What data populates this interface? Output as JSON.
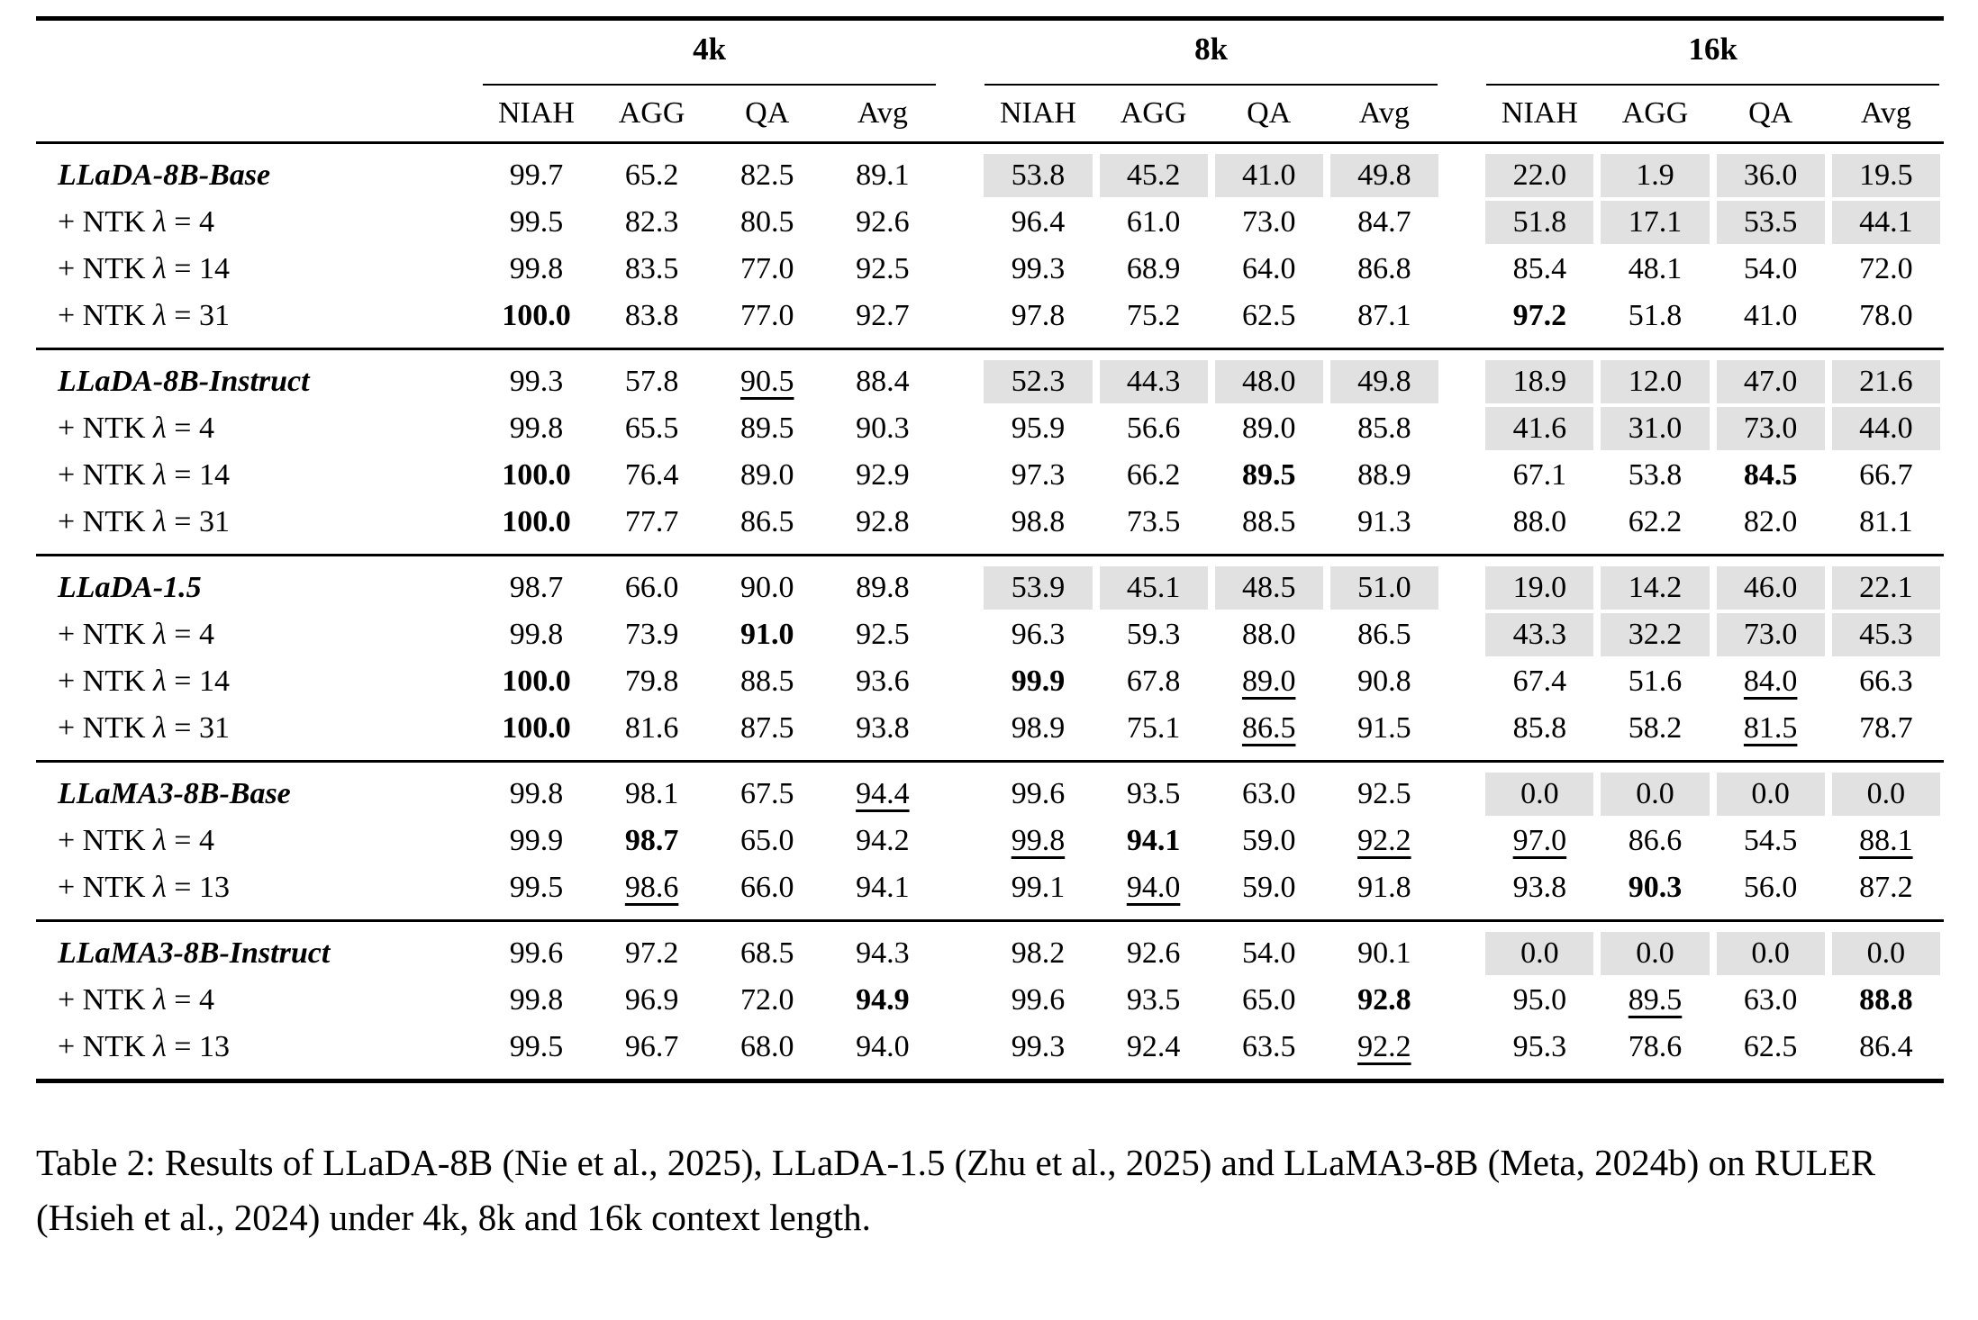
{
  "colors": {
    "row_highlight": "#e1e1e1"
  },
  "format_codes": {
    "b": "bold",
    "u": "underlined",
    "s": "shaded-gray-cell"
  },
  "table": {
    "groups": [
      {
        "label": "4k",
        "columns": [
          "NIAH",
          "AGG",
          "QA",
          "Avg"
        ]
      },
      {
        "label": "8k",
        "columns": [
          "NIAH",
          "AGG",
          "QA",
          "Avg"
        ]
      },
      {
        "label": "16k",
        "columns": [
          "NIAH",
          "AGG",
          "QA",
          "Avg"
        ]
      }
    ],
    "blocks": [
      {
        "rows": [
          {
            "label": "LLaDA-8B-Base",
            "model": true,
            "cells": [
              "99.7",
              "65.2",
              "82.5",
              "89.1",
              "53.8|s",
              "45.2|s",
              "41.0|s",
              "49.8|s",
              "22.0|s",
              "1.9|s",
              "36.0|s",
              "19.5|s"
            ]
          },
          {
            "label": "+ NTK λ = 4",
            "model": false,
            "cells": [
              "99.5",
              "82.3",
              "80.5",
              "92.6",
              "96.4",
              "61.0",
              "73.0",
              "84.7",
              "51.8|s",
              "17.1|s",
              "53.5|s",
              "44.1|s"
            ]
          },
          {
            "label": "+ NTK λ = 14",
            "model": false,
            "cells": [
              "99.8",
              "83.5",
              "77.0",
              "92.5",
              "99.3",
              "68.9",
              "64.0",
              "86.8",
              "85.4",
              "48.1",
              "54.0",
              "72.0"
            ]
          },
          {
            "label": "+ NTK λ = 31",
            "model": false,
            "cells": [
              "100.0|b",
              "83.8",
              "77.0",
              "92.7",
              "97.8",
              "75.2",
              "62.5",
              "87.1",
              "97.2|b",
              "51.8",
              "41.0",
              "78.0"
            ]
          }
        ]
      },
      {
        "rows": [
          {
            "label": "LLaDA-8B-Instruct",
            "model": true,
            "cells": [
              "99.3",
              "57.8",
              "90.5|u",
              "88.4",
              "52.3|s",
              "44.3|s",
              "48.0|s",
              "49.8|s",
              "18.9|s",
              "12.0|s",
              "47.0|s",
              "21.6|s"
            ]
          },
          {
            "label": "+ NTK λ = 4",
            "model": false,
            "cells": [
              "99.8",
              "65.5",
              "89.5",
              "90.3",
              "95.9",
              "56.6",
              "89.0",
              "85.8",
              "41.6|s",
              "31.0|s",
              "73.0|s",
              "44.0|s"
            ]
          },
          {
            "label": "+ NTK λ = 14",
            "model": false,
            "cells": [
              "100.0|b",
              "76.4",
              "89.0",
              "92.9",
              "97.3",
              "66.2",
              "89.5|b",
              "88.9",
              "67.1",
              "53.8",
              "84.5|b",
              "66.7"
            ]
          },
          {
            "label": "+ NTK λ = 31",
            "model": false,
            "cells": [
              "100.0|b",
              "77.7",
              "86.5",
              "92.8",
              "98.8",
              "73.5",
              "88.5",
              "91.3",
              "88.0",
              "62.2",
              "82.0",
              "81.1"
            ]
          }
        ]
      },
      {
        "rows": [
          {
            "label": "LLaDA-1.5",
            "model": true,
            "cells": [
              "98.7",
              "66.0",
              "90.0",
              "89.8",
              "53.9|s",
              "45.1|s",
              "48.5|s",
              "51.0|s",
              "19.0|s",
              "14.2|s",
              "46.0|s",
              "22.1|s"
            ]
          },
          {
            "label": "+ NTK λ = 4",
            "model": false,
            "cells": [
              "99.8",
              "73.9",
              "91.0|b",
              "92.5",
              "96.3",
              "59.3",
              "88.0",
              "86.5",
              "43.3|s",
              "32.2|s",
              "73.0|s",
              "45.3|s"
            ]
          },
          {
            "label": "+ NTK λ = 14",
            "model": false,
            "cells": [
              "100.0|b",
              "79.8",
              "88.5",
              "93.6",
              "99.9|b",
              "67.8",
              "89.0|u",
              "90.8",
              "67.4",
              "51.6",
              "84.0|u",
              "66.3"
            ]
          },
          {
            "label": "+ NTK λ = 31",
            "model": false,
            "cells": [
              "100.0|b",
              "81.6",
              "87.5",
              "93.8",
              "98.9",
              "75.1",
              "86.5|u",
              "91.5",
              "85.8",
              "58.2",
              "81.5|u",
              "78.7"
            ]
          }
        ]
      },
      {
        "rows": [
          {
            "label": "LLaMA3-8B-Base",
            "model": true,
            "cells": [
              "99.8",
              "98.1",
              "67.5",
              "94.4|u",
              "99.6",
              "93.5",
              "63.0",
              "92.5",
              "0.0|s",
              "0.0|s",
              "0.0|s",
              "0.0|s"
            ]
          },
          {
            "label": "+ NTK λ = 4",
            "model": false,
            "cells": [
              "99.9",
              "98.7|b",
              "65.0",
              "94.2",
              "99.8|u",
              "94.1|b",
              "59.0",
              "92.2|u",
              "97.0|u",
              "86.6",
              "54.5",
              "88.1|u"
            ]
          },
          {
            "label": "+ NTK λ = 13",
            "model": false,
            "cells": [
              "99.5",
              "98.6|u",
              "66.0",
              "94.1",
              "99.1",
              "94.0|u",
              "59.0",
              "91.8",
              "93.8",
              "90.3|b",
              "56.0",
              "87.2"
            ]
          }
        ]
      },
      {
        "rows": [
          {
            "label": "LLaMA3-8B-Instruct",
            "model": true,
            "cells": [
              "99.6",
              "97.2",
              "68.5",
              "94.3",
              "98.2",
              "92.6",
              "54.0",
              "90.1",
              "0.0|s",
              "0.0|s",
              "0.0|s",
              "0.0|s"
            ]
          },
          {
            "label": "+ NTK λ = 4",
            "model": false,
            "cells": [
              "99.8",
              "96.9",
              "72.0",
              "94.9|b",
              "99.6",
              "93.5",
              "65.0",
              "92.8|b",
              "95.0",
              "89.5|u",
              "63.0",
              "88.8|b"
            ]
          },
          {
            "label": "+ NTK λ = 13",
            "model": false,
            "cells": [
              "99.5",
              "96.7",
              "68.0",
              "94.0",
              "99.3",
              "92.4",
              "63.5",
              "92.2|u",
              "95.3",
              "78.6",
              "62.5",
              "86.4"
            ]
          }
        ]
      }
    ]
  },
  "caption": {
    "text": "Table 2: Results of LLaDA-8B (Nie et al., 2025), LLaDA-1.5 (Zhu et al., 2025) and LLaMA3-8B (Meta, 2024b) on RULER (Hsieh et al., 2024) under 4k, 8k and 16k context length."
  }
}
